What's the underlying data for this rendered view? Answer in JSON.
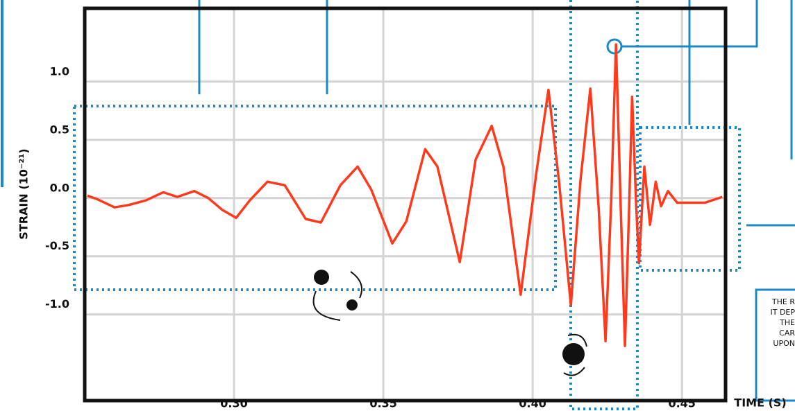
{
  "chart_data": {
    "type": "line",
    "ylabel": "STRAIN (10⁻²¹)",
    "xlabel": "TIME (S)",
    "annotations": [
      "THE R",
      "IT DEP",
      "THE",
      "CAR",
      "UPON"
    ],
    "x": [
      0.2509,
      0.2542,
      0.26,
      0.2647,
      0.2705,
      0.2763,
      0.281,
      0.2867,
      0.2914,
      0.296,
      0.3007,
      0.3053,
      0.3112,
      0.317,
      0.324,
      0.3291,
      0.3356,
      0.3414,
      0.346,
      0.353,
      0.3577,
      0.364,
      0.3681,
      0.3756,
      0.3809,
      0.3863,
      0.3902,
      0.396,
      0.4012,
      0.4053,
      0.4088,
      0.4128,
      0.416,
      0.4193,
      0.4221,
      0.4244,
      0.4263,
      0.4279,
      0.4295,
      0.4309,
      0.4323,
      0.4333,
      0.4347,
      0.4356,
      0.4374,
      0.4393,
      0.4412,
      0.443,
      0.4453,
      0.4484,
      0.453,
      0.4577,
      0.4635
    ],
    "series": [
      {
        "color": "#ff3a1c",
        "values": [
          0.02,
          -0.01,
          -0.08,
          -0.06,
          -0.02,
          0.05,
          0.01,
          0.06,
          0,
          -0.1,
          -0.17,
          -0.02,
          0.14,
          0.11,
          -0.18,
          -0.21,
          0.11,
          0.27,
          0.07,
          -0.39,
          -0.2,
          0.42,
          0.27,
          -0.55,
          0.33,
          0.62,
          0.27,
          -0.83,
          0.21,
          0.93,
          0.15,
          -0.92,
          0.15,
          0.94,
          -0.08,
          -1.23,
          -0.02,
          1.32,
          -0.08,
          -1.27,
          -0.08,
          0.87,
          -0.08,
          -0.56,
          0.27,
          -0.23,
          0.14,
          -0.07,
          0.06,
          -0.04,
          -0.04,
          -0.04,
          0.01
        ]
      }
    ],
    "xlim": [
      0.25,
      0.4646
    ],
    "ylim": [
      -1.74,
      1.63
    ],
    "xticks": [
      {
        "value": 0.3,
        "label": "0.30"
      },
      {
        "value": 0.35,
        "label": "0.35"
      },
      {
        "value": 0.4,
        "label": "0.40"
      },
      {
        "value": 0.45,
        "label": "0.45"
      }
    ],
    "yticks": [
      {
        "value": 1,
        "label": "1.0"
      },
      {
        "value": 0.5,
        "label": "0.5"
      },
      {
        "value": 0,
        "label": "0.0"
      },
      {
        "value": -0.5,
        "label": "-0.5"
      },
      {
        "value": -1,
        "label": "-1.0"
      }
    ],
    "grid": true
  }
}
